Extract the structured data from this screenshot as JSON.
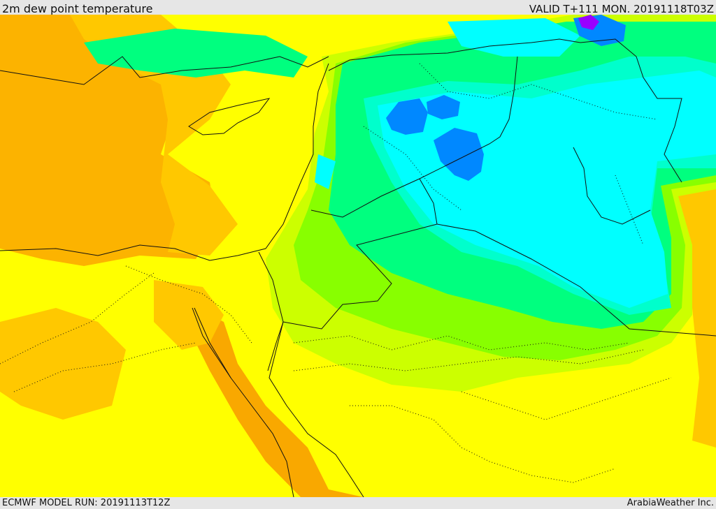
{
  "header": {
    "title": "2m dew point temperature",
    "valid": "VALID T+111 MON. 20191118T03Z"
  },
  "footer": {
    "model_run": "ECMWF MODEL RUN: 20191113T12Z",
    "credit": "ArabiaWeather Inc."
  },
  "palette": {
    "orange_dark": "#f9a800",
    "orange": "#fcb300",
    "orange_light": "#ffc800",
    "yellow_orange": "#ffdf00",
    "yellow": "#ffff00",
    "yellow_green": "#ccff00",
    "lime": "#88ff00",
    "green": "#00ff7f",
    "aqua": "#00ffcc",
    "cyan": "#00ffff",
    "blue": "#0088ff",
    "violet": "#9900ff",
    "border": "#111111"
  }
}
